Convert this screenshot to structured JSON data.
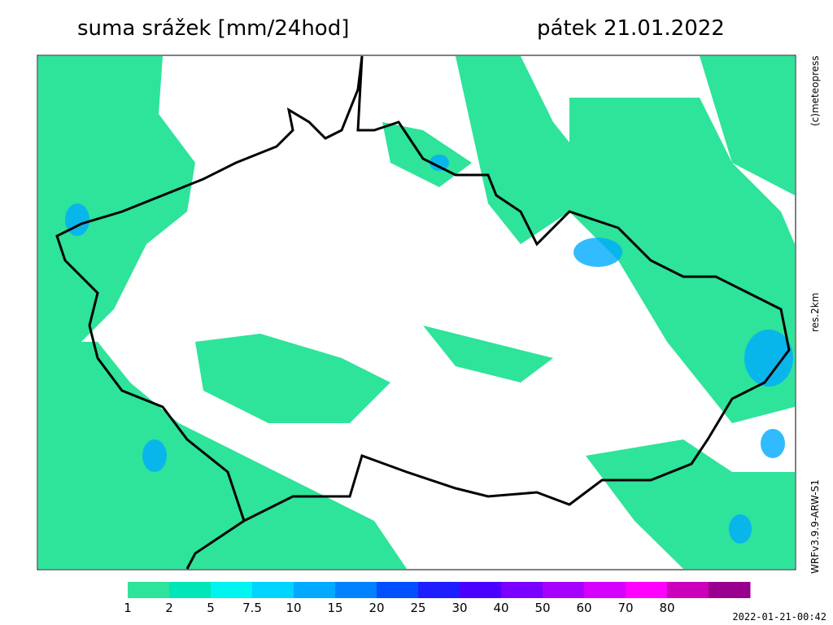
{
  "header": {
    "title": "suma srážek [mm/24hod]",
    "date": "pátek 21.01.2022"
  },
  "side": {
    "copyright": "(c)meteopress",
    "resolution": "res.2km",
    "model": "WRFv3.9.9-ARW-S1"
  },
  "legend": {
    "values": [
      1,
      2,
      5,
      7.5,
      10,
      15,
      20,
      25,
      30,
      40,
      50,
      60,
      70,
      80
    ],
    "colors": [
      "#2ee39a",
      "#00e6b8",
      "#00f5f0",
      "#00d4ff",
      "#00aaff",
      "#0082ff",
      "#0050ff",
      "#1e1eff",
      "#4b00ff",
      "#7a00ff",
      "#a800ff",
      "#d600ff",
      "#ff00ff",
      "#cc00bb",
      "#9a0090"
    ]
  },
  "footer": {
    "timestamp": "2022-01-21-00:42"
  }
}
